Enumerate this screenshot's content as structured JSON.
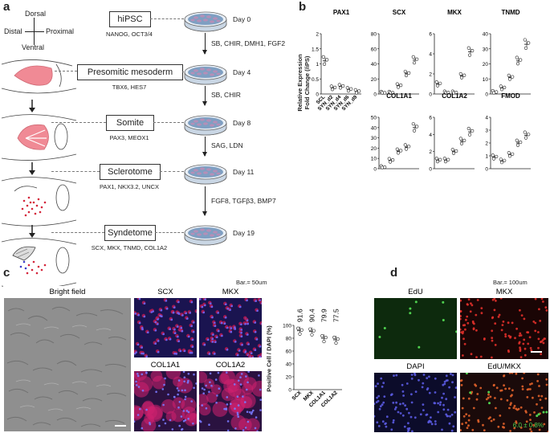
{
  "panels": {
    "a": "a",
    "b": "b",
    "c": "c",
    "d": "d"
  },
  "axes": {
    "dorsal": "Dorsal",
    "ventral": "Ventral",
    "distal": "Distal",
    "proximal": "Proximal"
  },
  "stages": [
    {
      "name": "hiPSC",
      "markers": "NANOG, OCT3/4",
      "day": "Day 0"
    },
    {
      "name": "Presomitic mesoderm",
      "markers": "TBX6, HES7",
      "day": "Day 4"
    },
    {
      "name": "Somite",
      "markers": "PAX3, MEOX1",
      "day": "Day 8"
    },
    {
      "name": "Sclerotome",
      "markers": "PAX1, NKX3.2, UNCX",
      "day": "Day 11"
    },
    {
      "name": "Syndetome",
      "markers": "SCX, MKX, TNMD, COL1A2",
      "day": "Day 19"
    }
  ],
  "factors": [
    "SB, CHIR, DMH1, FGF2",
    "SB, CHIR",
    "SAG, LDN",
    "FGF8, TGFβ3, BMP7"
  ],
  "chart_b": {
    "ylabel_line1": "Relative Expression",
    "ylabel_line2": "Fold Change (/iPS)",
    "categories": [
      "SCL",
      "SYN_d2",
      "SYN_d4",
      "SYN_d6",
      "SYN_d8"
    ]
  },
  "chart_c": {
    "ylabel": "Positive Cell / DAPI (%)",
    "categories": [
      "SCX",
      "MKX",
      "COL1A1",
      "COL1A2"
    ],
    "value_labels": [
      "91.6",
      "90.4",
      "79.9",
      "77.5"
    ]
  },
  "images_c": {
    "bright": "Bright field",
    "scx": "SCX",
    "mkx": "MKX",
    "col1a1": "COL1A1",
    "col1a2": "COL1A2",
    "scale": "Bar.= 50um"
  },
  "images_d": {
    "edu": "EdU",
    "mkx": "MKX",
    "dapi": "DAPI",
    "merge": "EdU/MKX",
    "scale": "Bar.= 100um",
    "stat": "6.0 ± 0.8%"
  },
  "chart_data": [
    {
      "type": "scatter",
      "title": "PAX1",
      "categories": [
        "SCL",
        "SYN_d2",
        "SYN_d4",
        "SYN_d6",
        "SYN_d8"
      ],
      "ylim": [
        0,
        2.0
      ],
      "yticks": [
        0,
        0.5,
        1.0,
        1.5,
        2.0
      ],
      "values": [
        1.1,
        0.2,
        0.25,
        0.15,
        0.08
      ]
    },
    {
      "type": "scatter",
      "title": "SCX",
      "categories": [
        "SCL",
        "SYN_d2",
        "SYN_d4",
        "SYN_d6",
        "SYN_d8"
      ],
      "ylim": [
        0,
        80
      ],
      "yticks": [
        0,
        20,
        40,
        60,
        80
      ],
      "values": [
        1,
        1,
        11,
        27,
        45
      ]
    },
    {
      "type": "scatter",
      "title": "MKX",
      "categories": [
        "SCL",
        "SYN_d2",
        "SYN_d4",
        "SYN_d6",
        "SYN_d8"
      ],
      "ylim": [
        0,
        6
      ],
      "yticks": [
        0,
        2,
        4,
        6
      ],
      "values": [
        1,
        0.1,
        0.1,
        1.8,
        4.2
      ]
    },
    {
      "type": "scatter",
      "title": "TNMD",
      "categories": [
        "SCL",
        "SYN_d2",
        "SYN_d4",
        "SYN_d6",
        "SYN_d8"
      ],
      "ylim": [
        0,
        40
      ],
      "yticks": [
        0,
        10,
        20,
        30,
        40
      ],
      "values": [
        1,
        4,
        11,
        22,
        33
      ]
    },
    {
      "type": "scatter",
      "title": "COL1A1",
      "categories": [
        "SCL",
        "SYN_d2",
        "SYN_d4",
        "SYN_d6",
        "SYN_d8"
      ],
      "ylim": [
        0,
        50
      ],
      "yticks": [
        0,
        10,
        20,
        30,
        40,
        50
      ],
      "values": [
        1,
        8,
        17,
        21,
        40
      ]
    },
    {
      "type": "scatter",
      "title": "COL1A2",
      "categories": [
        "SCL",
        "SYN_d2",
        "SYN_d4",
        "SYN_d6",
        "SYN_d8"
      ],
      "ylim": [
        0,
        6
      ],
      "yticks": [
        0,
        2,
        4,
        6
      ],
      "values": [
        1,
        1,
        2,
        3.2,
        4.3
      ]
    },
    {
      "type": "scatter",
      "title": "FMOD",
      "categories": [
        "SCL",
        "SYN_d2",
        "SYN_d4",
        "SYN_d6",
        "SYN_d8"
      ],
      "ylim": [
        0,
        4
      ],
      "yticks": [
        0,
        1,
        2,
        3,
        4
      ],
      "values": [
        0.9,
        0.6,
        1.1,
        2.0,
        2.6
      ]
    },
    {
      "type": "scatter",
      "title": "",
      "categories": [
        "SCX",
        "MKX",
        "COL1A1",
        "COL1A2"
      ],
      "ylim": [
        0,
        100
      ],
      "yticks": [
        0,
        20,
        40,
        60,
        80,
        100
      ],
      "values": [
        91.6,
        90.4,
        79.9,
        77.5
      ],
      "ylabel": "Positive Cell / DAPI (%)"
    }
  ],
  "colors": {
    "pink": "#f08a95",
    "dish": "#6c8fb3",
    "red": "#d4243a",
    "blue": "#3a3ac8",
    "green": "#4fd14f"
  }
}
